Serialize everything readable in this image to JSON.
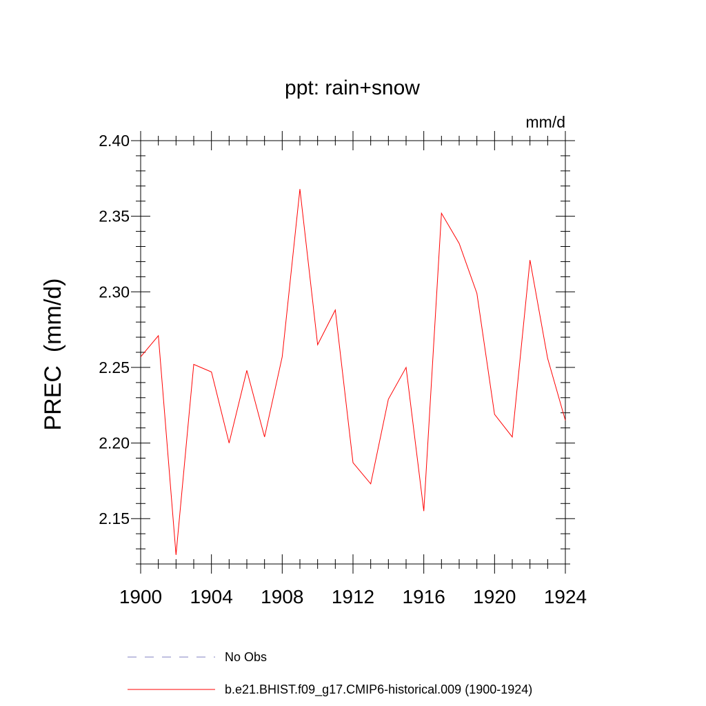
{
  "chart_data": {
    "type": "line",
    "title": "ppt: rain+snow",
    "units_label": "mm/d",
    "ylabel": "PREC  (mm/d)",
    "xlabel": "",
    "xlim": [
      1900,
      1924
    ],
    "ylim": [
      2.12,
      2.4
    ],
    "xticks": [
      1900,
      1904,
      1908,
      1912,
      1916,
      1920,
      1924
    ],
    "yticks": [
      2.15,
      2.2,
      2.25,
      2.3,
      2.35,
      2.4
    ],
    "ytick_labels": [
      "2.15",
      "2.20",
      "2.25",
      "2.30",
      "2.35",
      "2.40"
    ],
    "xtick_labels": [
      "1900",
      "1904",
      "1908",
      "1912",
      "1916",
      "1920",
      "1924"
    ],
    "grid": false,
    "legend_position": "bottom",
    "series": [
      {
        "name": "b.e21.BHIST.f09_g17.CMIP6-historical.009 (1900-1924)",
        "color": "#ff0000",
        "style": "solid",
        "x": [
          1900,
          1901,
          1902,
          1903,
          1904,
          1905,
          1906,
          1907,
          1908,
          1909,
          1910,
          1911,
          1912,
          1913,
          1914,
          1915,
          1916,
          1917,
          1918,
          1919,
          1920,
          1921,
          1922,
          1923,
          1924
        ],
        "y": [
          2.257,
          2.271,
          2.126,
          2.252,
          2.247,
          2.2,
          2.248,
          2.204,
          2.257,
          2.368,
          2.265,
          2.288,
          2.187,
          2.173,
          2.229,
          2.25,
          2.155,
          2.352,
          2.332,
          2.299,
          2.219,
          2.204,
          2.321,
          2.256,
          2.215
        ]
      }
    ],
    "legend": [
      {
        "label": "No Obs",
        "color": "#8080c0",
        "style": "dashed"
      },
      {
        "label": "b.e21.BHIST.f09_g17.CMIP6-historical.009 (1900-1924)",
        "color": "#ff0000",
        "style": "solid"
      }
    ]
  }
}
